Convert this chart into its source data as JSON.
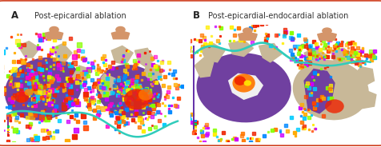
{
  "panel_a_label": "A",
  "panel_a_title": "Post-epicardial ablation",
  "panel_b_label": "B",
  "panel_b_title": "Post-epicardial-endocardial ablation",
  "border_color": "#d04020",
  "border_linewidth": 1.2,
  "background_color": "#ffffff",
  "panel_bg_color": "#000000",
  "label_color": "#222222",
  "title_color": "#333333",
  "title_fontsize": 7.0,
  "label_fontsize": 8.5,
  "fig_width": 4.77,
  "fig_height": 1.84,
  "dpi": 100,
  "purple": "#7040a0",
  "gray_tissue": "#c8b898",
  "cyan": "#30ccbb",
  "red": "#ee2200",
  "orange": "#ff7700",
  "yellow": "#ffee00",
  "white_spot": "#ffffff",
  "skin": "#d4956a"
}
